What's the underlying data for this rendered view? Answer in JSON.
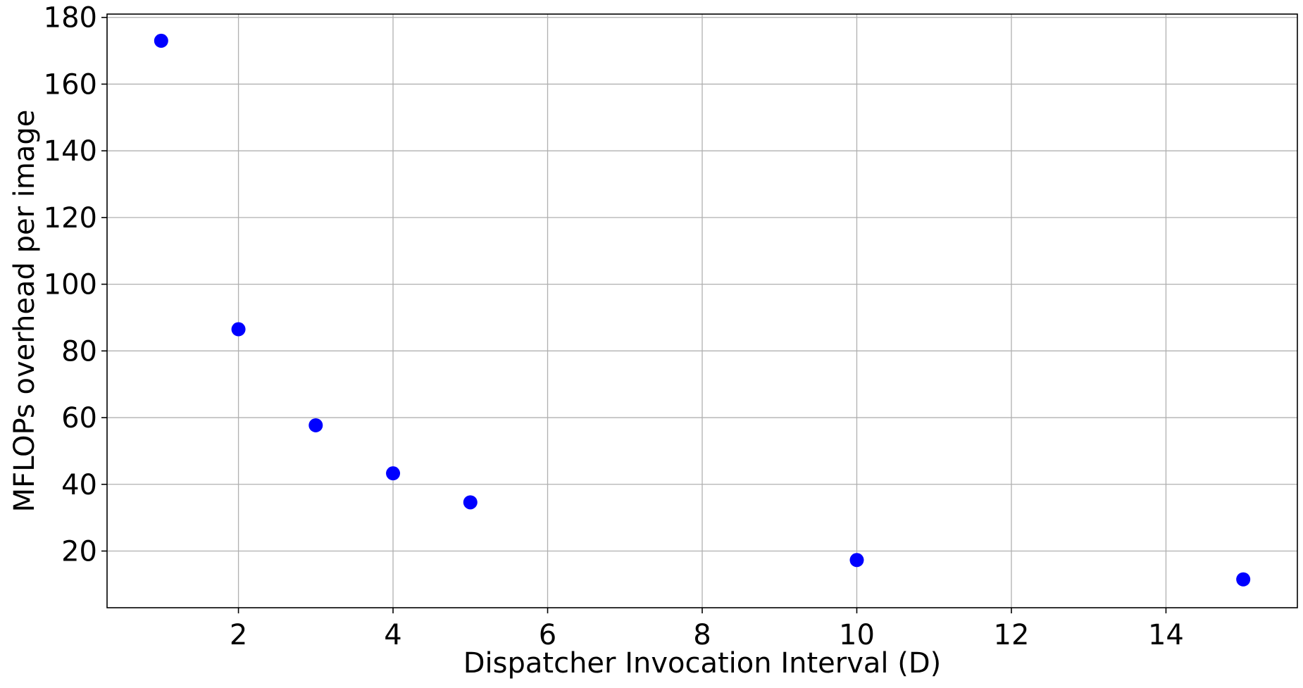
{
  "chart_data": {
    "type": "scatter",
    "title": "",
    "xlabel": "Dispatcher Invocation Interval (D)",
    "ylabel": "MFLOPs overhead per image",
    "xlim": [
      0.3,
      15.7
    ],
    "ylim": [
      3,
      181
    ],
    "xticks": [
      2,
      4,
      6,
      8,
      10,
      12,
      14
    ],
    "yticks": [
      20,
      40,
      60,
      80,
      100,
      120,
      140,
      160,
      180
    ],
    "grid": true,
    "legend": "none",
    "series": [
      {
        "color": "#0000ff",
        "x": [
          1,
          2,
          3,
          4,
          5,
          10,
          15
        ],
        "y": [
          173,
          86.5,
          57.7,
          43.3,
          34.6,
          17.3,
          11.5
        ]
      }
    ]
  }
}
